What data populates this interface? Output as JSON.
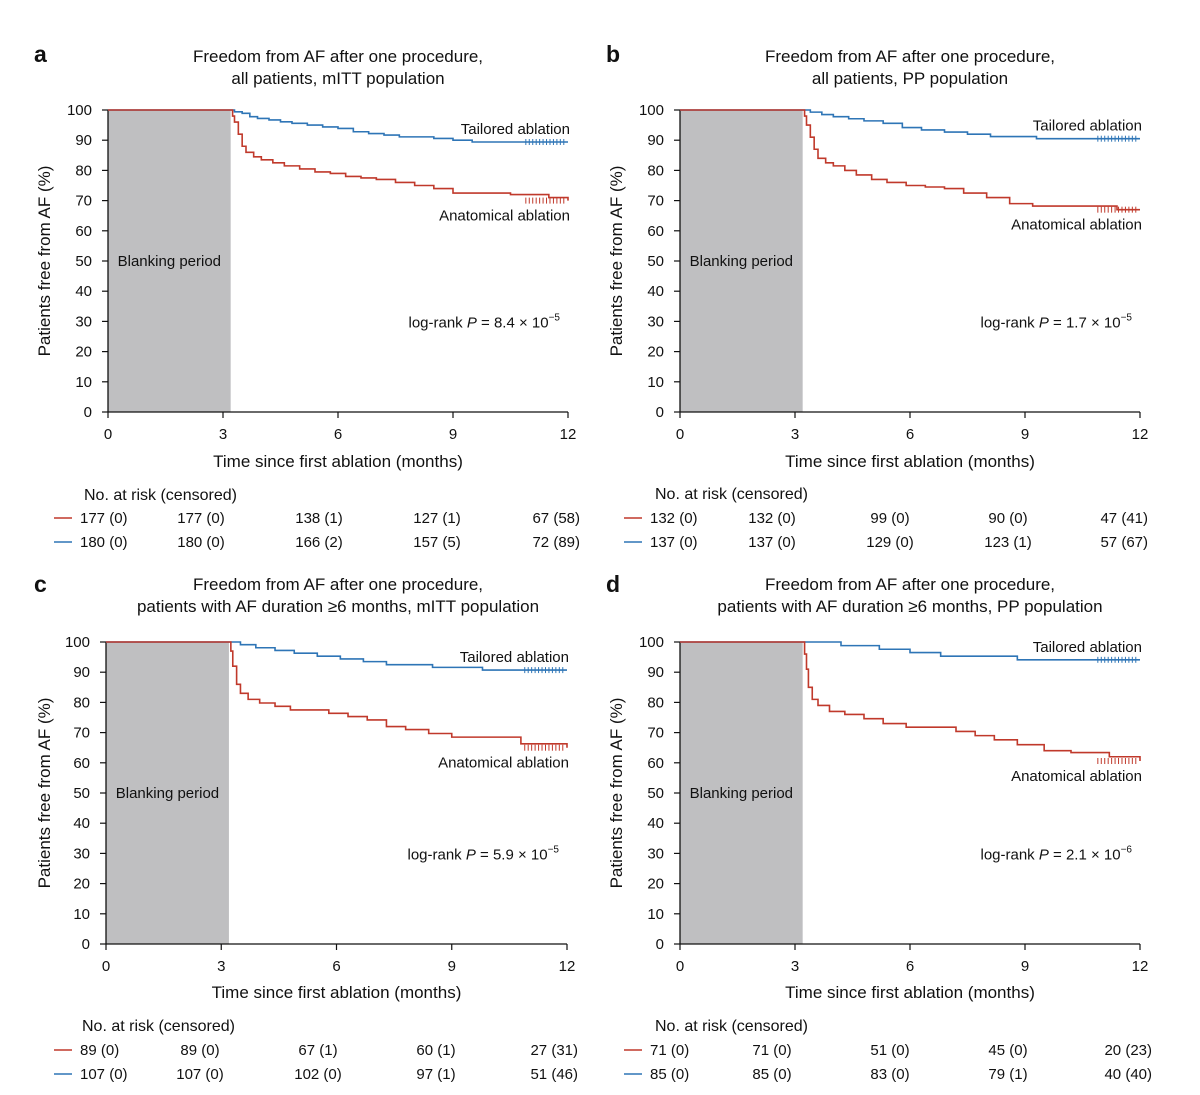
{
  "figure": {
    "colors": {
      "anatomical": "#c0392b",
      "tailored": "#2e75b6",
      "blanking": "#bfbfc1",
      "axis": "#111111"
    }
  },
  "chart_data": [
    {
      "type": "line",
      "panel": "a",
      "title": [
        "Freedom from AF after one procedure,",
        "all patients, mITT population"
      ],
      "xlabel": "Time since first ablation (months)",
      "ylabel": "Patients free from AF (%)",
      "xlim": [
        0,
        12
      ],
      "ylim": [
        0,
        100
      ],
      "xticks": [
        0,
        3,
        6,
        9,
        12
      ],
      "yticks": [
        0,
        10,
        20,
        30,
        40,
        50,
        60,
        70,
        80,
        90,
        100
      ],
      "blanking": {
        "label": "Blanking period",
        "x_range": [
          0,
          3.2
        ]
      },
      "pvalue": {
        "prefix": "log-rank ",
        "p": "P",
        "eq": " = 8.4 × 10",
        "exp": "−5"
      },
      "series": [
        {
          "name": "Tailored ablation",
          "key": "tailored",
          "label_pos": "above-end",
          "x": [
            0,
            3.2,
            3.3,
            3.5,
            3.7,
            3.9,
            4.2,
            4.5,
            4.8,
            5.2,
            5.6,
            6.0,
            6.4,
            6.8,
            7.2,
            7.6,
            8.0,
            8.5,
            9.0,
            9.5,
            10.0,
            10.5,
            11.0,
            11.5,
            12.0
          ],
          "y": [
            100,
            100,
            99.4,
            98.9,
            97.8,
            97.2,
            96.7,
            96.1,
            95.6,
            95.0,
            94.4,
            93.9,
            92.8,
            92.2,
            91.7,
            91.1,
            91.1,
            90.6,
            90.0,
            89.4,
            89.4,
            89.4,
            89.4,
            89.4,
            89.4
          ]
        },
        {
          "name": "Anatomical ablation",
          "key": "anatomical",
          "label_pos": "below-end",
          "x": [
            0,
            3.2,
            3.25,
            3.3,
            3.4,
            3.5,
            3.6,
            3.8,
            4.0,
            4.3,
            4.6,
            5.0,
            5.4,
            5.8,
            6.2,
            6.6,
            7.0,
            7.5,
            8.0,
            8.5,
            9.0,
            9.5,
            10.0,
            10.5,
            11.0,
            11.5,
            12.0
          ],
          "y": [
            100,
            100,
            98,
            96,
            92,
            88,
            86,
            84.5,
            83.5,
            82.5,
            81.5,
            80.5,
            79.5,
            79,
            78,
            77.5,
            77,
            76,
            75,
            74,
            72.5,
            72.5,
            72.5,
            72,
            72,
            71,
            70
          ]
        }
      ],
      "at_risk": {
        "header": "No. at risk (censored)",
        "rows": [
          {
            "key": "anatomical",
            "values": [
              "177 (0)",
              "177 (0)",
              "138 (1)",
              "127 (1)",
              "67 (58)"
            ]
          },
          {
            "key": "tailored",
            "values": [
              "180 (0)",
              "180 (0)",
              "166 (2)",
              "157 (5)",
              "72 (89)"
            ]
          }
        ]
      }
    },
    {
      "type": "line",
      "panel": "b",
      "title": [
        "Freedom from AF after one procedure,",
        "all patients, PP population"
      ],
      "xlabel": "Time since first ablation (months)",
      "ylabel": "Patients free from AF (%)",
      "xlim": [
        0,
        12
      ],
      "ylim": [
        0,
        100
      ],
      "xticks": [
        0,
        3,
        6,
        9,
        12
      ],
      "yticks": [
        0,
        10,
        20,
        30,
        40,
        50,
        60,
        70,
        80,
        90,
        100
      ],
      "blanking": {
        "label": "Blanking period",
        "x_range": [
          0,
          3.2
        ]
      },
      "pvalue": {
        "prefix": "log-rank ",
        "p": "P",
        "eq": " = 1.7 × 10",
        "exp": "−5"
      },
      "series": [
        {
          "name": "Tailored ablation",
          "key": "tailored",
          "label_pos": "above-end",
          "x": [
            0,
            3.2,
            3.4,
            3.7,
            4.0,
            4.4,
            4.8,
            5.3,
            5.8,
            6.3,
            6.9,
            7.5,
            8.1,
            8.7,
            9.3,
            10.0,
            10.8,
            11.5,
            12.0
          ],
          "y": [
            100,
            100,
            99.3,
            98.5,
            97.8,
            97.1,
            96.4,
            95.6,
            94.2,
            93.4,
            92.7,
            92.0,
            91.2,
            91.2,
            90.5,
            90.5,
            90.5,
            90.5,
            90.5
          ]
        },
        {
          "name": "Anatomical ablation",
          "key": "anatomical",
          "label_pos": "below-end",
          "x": [
            0,
            3.2,
            3.25,
            3.3,
            3.4,
            3.5,
            3.6,
            3.8,
            4.0,
            4.3,
            4.6,
            5.0,
            5.4,
            5.9,
            6.4,
            6.9,
            7.4,
            8.0,
            8.6,
            9.2,
            10.0,
            10.8,
            11.4,
            12.0
          ],
          "y": [
            100,
            100,
            98,
            95,
            91,
            87,
            84,
            82.5,
            81.5,
            80,
            78.5,
            77,
            76,
            75,
            74.5,
            74,
            72.5,
            71,
            69,
            68.2,
            68.2,
            68.2,
            67,
            67
          ]
        }
      ],
      "at_risk": {
        "header": "No. at risk (censored)",
        "rows": [
          {
            "key": "anatomical",
            "values": [
              "132 (0)",
              "132 (0)",
              "99 (0)",
              "90 (0)",
              "47 (41)"
            ]
          },
          {
            "key": "tailored",
            "values": [
              "137 (0)",
              "137 (0)",
              "129 (0)",
              "123 (1)",
              "57 (67)"
            ]
          }
        ]
      }
    },
    {
      "type": "line",
      "panel": "c",
      "title": [
        "Freedom from AF after one procedure,",
        "patients with AF duration ≥6 months, mITT population"
      ],
      "xlabel": "Time since first ablation (months)",
      "ylabel": "Patients free from AF (%)",
      "xlim": [
        0,
        12
      ],
      "ylim": [
        0,
        100
      ],
      "xticks": [
        0,
        3,
        6,
        9,
        12
      ],
      "yticks": [
        0,
        10,
        20,
        30,
        40,
        50,
        60,
        70,
        80,
        90,
        100
      ],
      "blanking": {
        "label": "Blanking period",
        "x_range": [
          0,
          3.2
        ]
      },
      "pvalue": {
        "prefix": "log-rank ",
        "p": "P",
        "eq": " = 5.9 × 10",
        "exp": "−5"
      },
      "series": [
        {
          "name": "Tailored ablation",
          "key": "tailored",
          "label_pos": "above-end",
          "x": [
            0,
            3.2,
            3.5,
            3.9,
            4.4,
            4.9,
            5.5,
            6.1,
            6.7,
            7.3,
            7.9,
            8.5,
            9.1,
            9.8,
            10.5,
            11.2,
            12.0
          ],
          "y": [
            100,
            100,
            99.1,
            98.1,
            97.2,
            96.3,
            95.3,
            94.4,
            93.5,
            92.5,
            92.5,
            91.6,
            91.6,
            90.7,
            90.7,
            90.7,
            90.7
          ]
        },
        {
          "name": "Anatomical ablation",
          "key": "anatomical",
          "label_pos": "below-end",
          "x": [
            0,
            3.2,
            3.25,
            3.3,
            3.4,
            3.5,
            3.7,
            4.0,
            4.4,
            4.8,
            5.3,
            5.8,
            6.3,
            6.8,
            7.3,
            7.8,
            8.4,
            9.0,
            9.6,
            10.2,
            10.8,
            11.4,
            12.0
          ],
          "y": [
            100,
            100,
            97,
            92,
            86,
            83,
            81,
            79.8,
            78.7,
            77.5,
            77.5,
            76.4,
            75.3,
            74.2,
            72,
            71,
            69.7,
            68.5,
            68.5,
            68.5,
            66.3,
            66.3,
            65
          ]
        }
      ],
      "at_risk": {
        "header": "No. at risk (censored)",
        "rows": [
          {
            "key": "anatomical",
            "values": [
              "89 (0)",
              "89 (0)",
              "67 (1)",
              "60 (1)",
              "27 (31)"
            ]
          },
          {
            "key": "tailored",
            "values": [
              "107 (0)",
              "107 (0)",
              "102 (0)",
              "97 (1)",
              "51 (46)"
            ]
          }
        ]
      }
    },
    {
      "type": "line",
      "panel": "d",
      "title": [
        "Freedom from AF after one procedure,",
        "patients with AF duration ≥6 months, PP population"
      ],
      "xlabel": "Time since first ablation (months)",
      "ylabel": "Patients free from AF (%)",
      "xlim": [
        0,
        12
      ],
      "ylim": [
        0,
        100
      ],
      "xticks": [
        0,
        3,
        6,
        9,
        12
      ],
      "yticks": [
        0,
        10,
        20,
        30,
        40,
        50,
        60,
        70,
        80,
        90,
        100
      ],
      "blanking": {
        "label": "Blanking period",
        "x_range": [
          0,
          3.2
        ]
      },
      "pvalue": {
        "prefix": "log-rank ",
        "p": "P",
        "eq": " = 2.1 × 10",
        "exp": "−6"
      },
      "series": [
        {
          "name": "Tailored ablation",
          "key": "tailored",
          "label_pos": "above-end",
          "x": [
            0,
            3.2,
            4.2,
            5.2,
            6.0,
            6.8,
            7.8,
            8.8,
            9.8,
            10.8,
            12.0
          ],
          "y": [
            100,
            100,
            98.8,
            97.6,
            96.5,
            95.3,
            95.3,
            94.1,
            94.1,
            94.1,
            94.1
          ]
        },
        {
          "name": "Anatomical ablation",
          "key": "anatomical",
          "label_pos": "below-end",
          "x": [
            0,
            3.2,
            3.25,
            3.3,
            3.35,
            3.45,
            3.6,
            3.9,
            4.3,
            4.8,
            5.3,
            5.9,
            6.6,
            7.2,
            7.7,
            8.2,
            8.8,
            9.5,
            10.2,
            10.8,
            11.2,
            12.0
          ],
          "y": [
            100,
            100,
            96,
            91,
            85,
            81,
            79,
            77,
            76,
            74.6,
            73,
            71.8,
            71.8,
            70.4,
            69,
            67.6,
            66,
            64,
            63.4,
            63.4,
            62,
            60.6
          ]
        }
      ],
      "at_risk": {
        "header": "No. at risk (censored)",
        "rows": [
          {
            "key": "anatomical",
            "values": [
              "71 (0)",
              "71 (0)",
              "51 (0)",
              "45 (0)",
              "20 (23)"
            ]
          },
          {
            "key": "tailored",
            "values": [
              "85 (0)",
              "85 (0)",
              "83 (0)",
              "79 (1)",
              "40 (40)"
            ]
          }
        ]
      }
    }
  ]
}
